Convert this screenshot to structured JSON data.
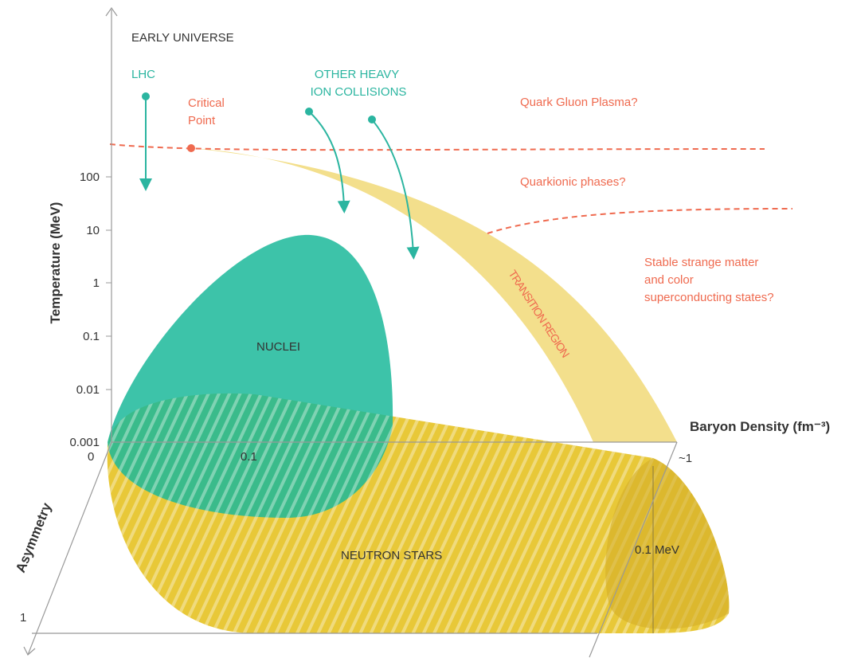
{
  "axes": {
    "y_title": "Temperature (MeV)",
    "x_title": "Baryon Density (fm⁻³)",
    "z_title": "Asymmetry",
    "y_ticks": [
      "100",
      "10",
      "1",
      "0.1",
      "0.01",
      "0.001"
    ],
    "x_ticks": [
      "0",
      "0.1",
      "~1"
    ],
    "z_tick": "1"
  },
  "labels": {
    "early_universe": "EARLY UNIVERSE",
    "lhc": "LHC",
    "other_heavy": [
      "OTHER HEAVY",
      "ION COLLISIONS"
    ],
    "critical_point": [
      "Critical",
      "Point"
    ],
    "qgp": "Quark Gluon Plasma?",
    "quarkionic": "Quarkionic phases?",
    "strange": [
      "Stable strange matter",
      "and color",
      "superconducting states?"
    ],
    "transition": "TRANSITION REGION",
    "nuclei": "NUCLEI",
    "neutron_stars": "NEUTRON STARS",
    "mev": "0.1 MeV"
  }
}
